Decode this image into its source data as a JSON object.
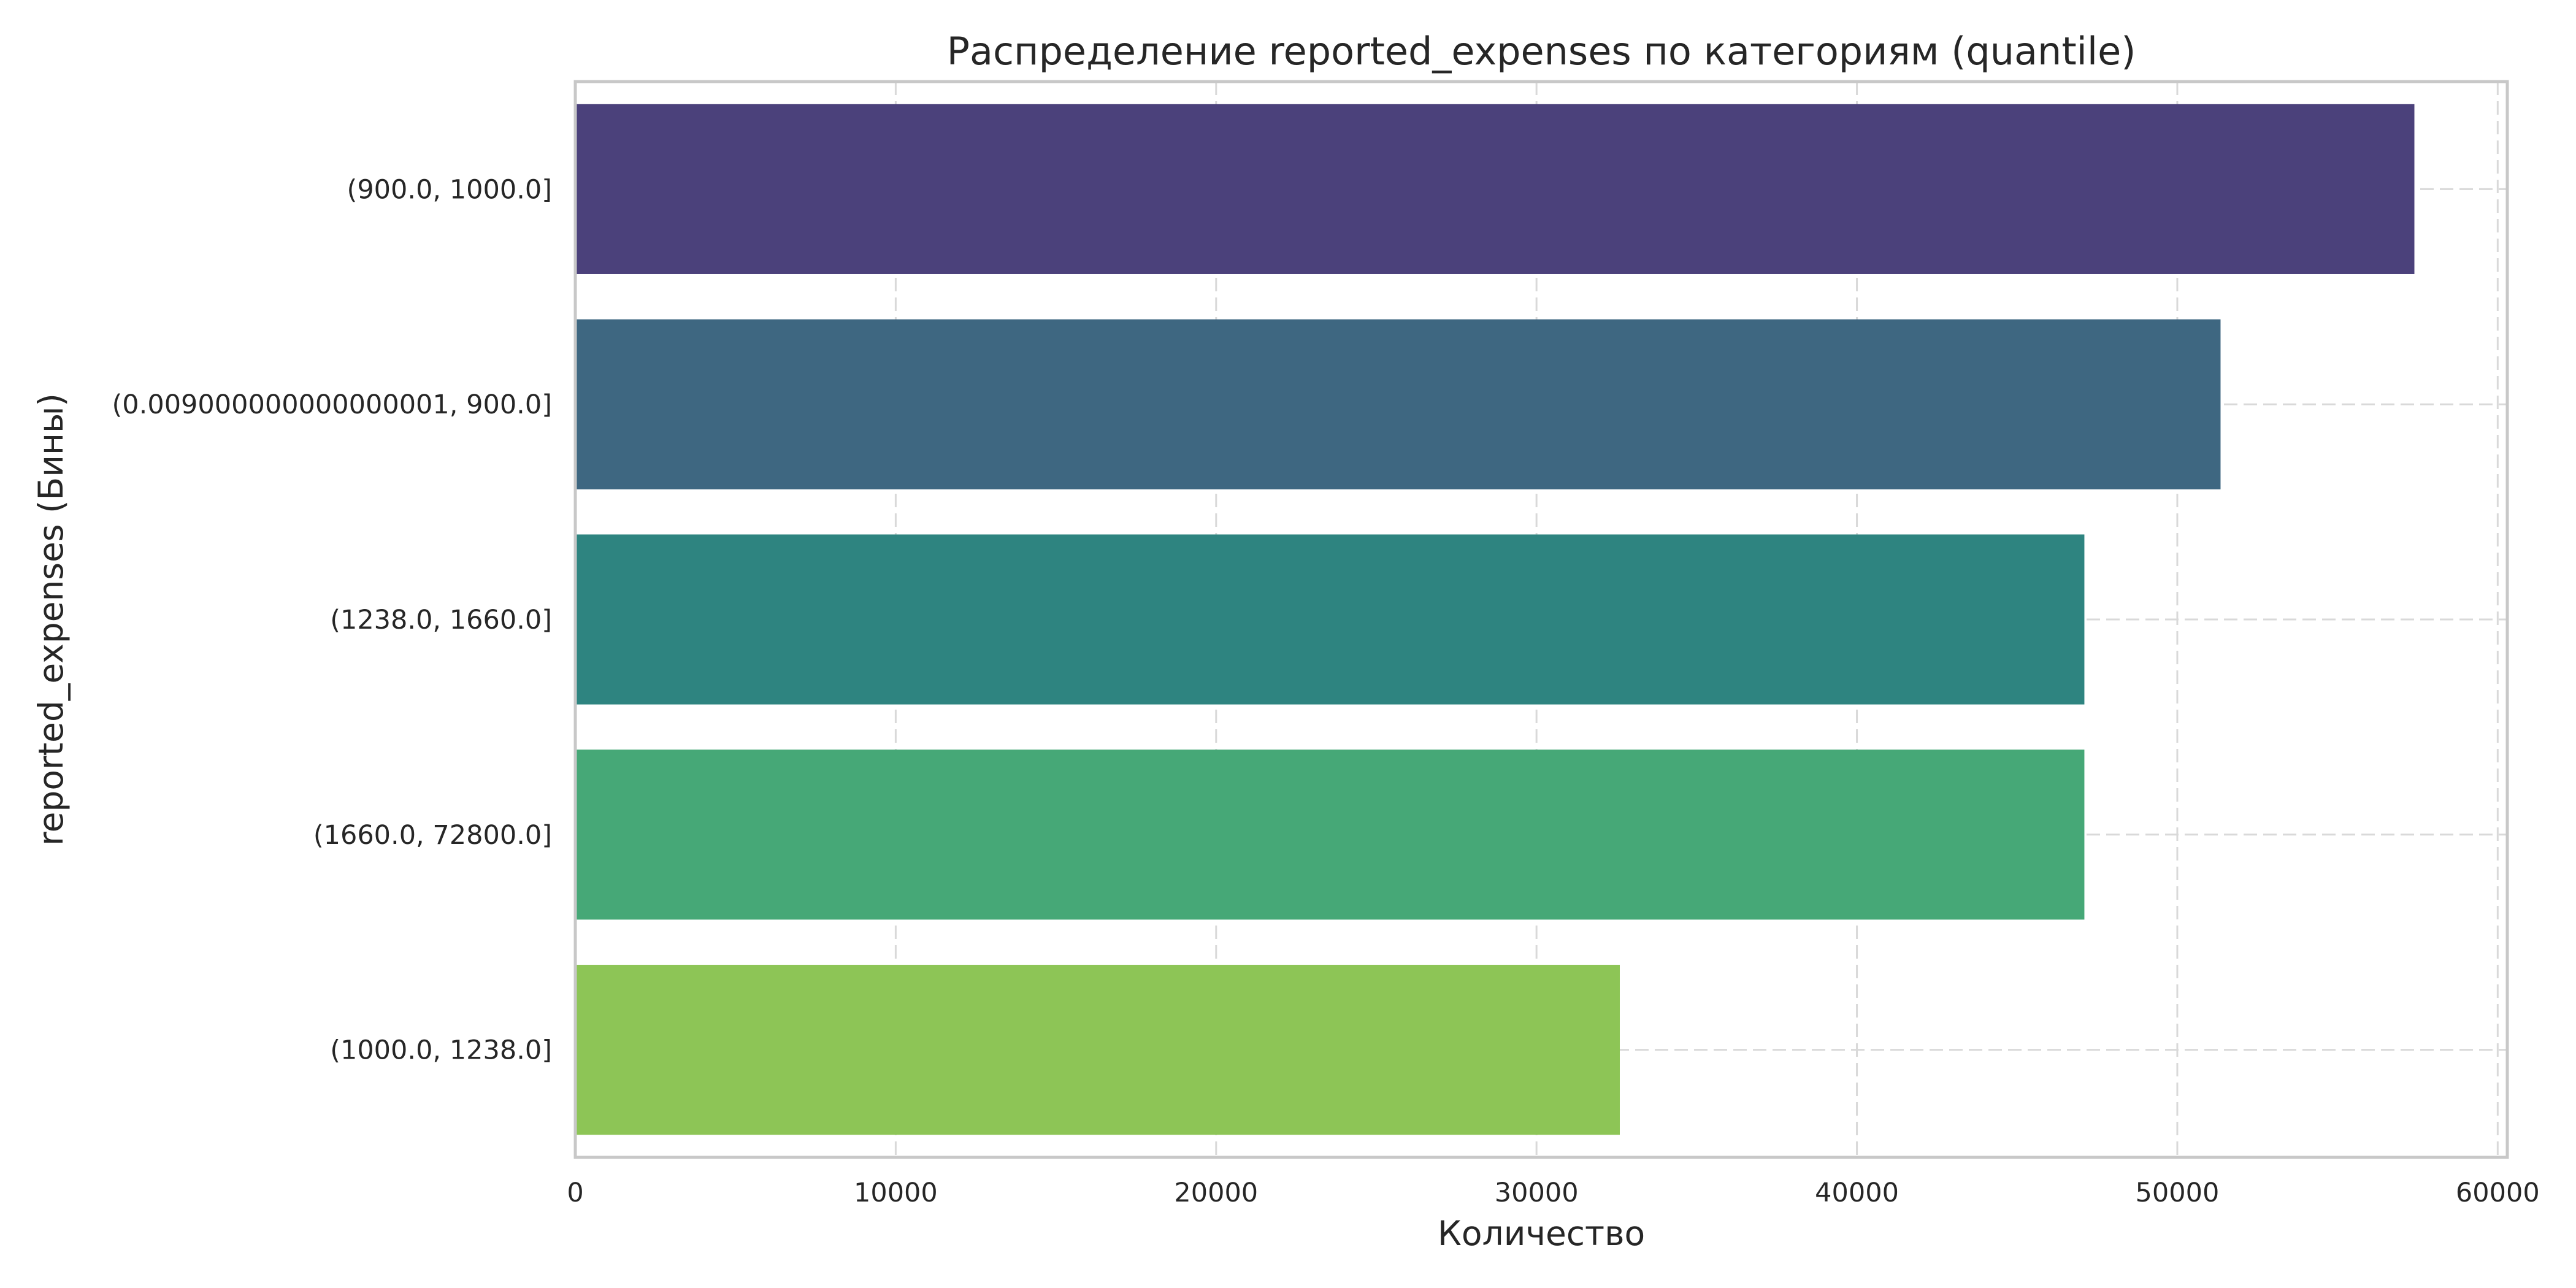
{
  "chart_data": {
    "type": "bar",
    "orientation": "horizontal",
    "title": "Распределение reported_expenses по категориям (quantile)",
    "xlabel": "Количество",
    "ylabel": "reported_expenses (Бины)",
    "categories": [
      "(900.0, 1000.0]",
      "(0.009000000000000001, 900.0]",
      "(1238.0, 1660.0]",
      "(1660.0, 72800.0]",
      "(1000.0, 1238.0]"
    ],
    "values": [
      57400,
      51350,
      47100,
      47100,
      32600
    ],
    "colors": [
      "#4b417b",
      "#3e6781",
      "#2e8480",
      "#46a877",
      "#8dc556"
    ],
    "xlim": [
      0,
      60300
    ],
    "xticks": [
      0,
      10000,
      20000,
      30000,
      40000,
      50000,
      60000
    ],
    "xtick_labels": [
      "0",
      "10000",
      "20000",
      "30000",
      "40000",
      "50000",
      "60000"
    ],
    "grid": true
  }
}
